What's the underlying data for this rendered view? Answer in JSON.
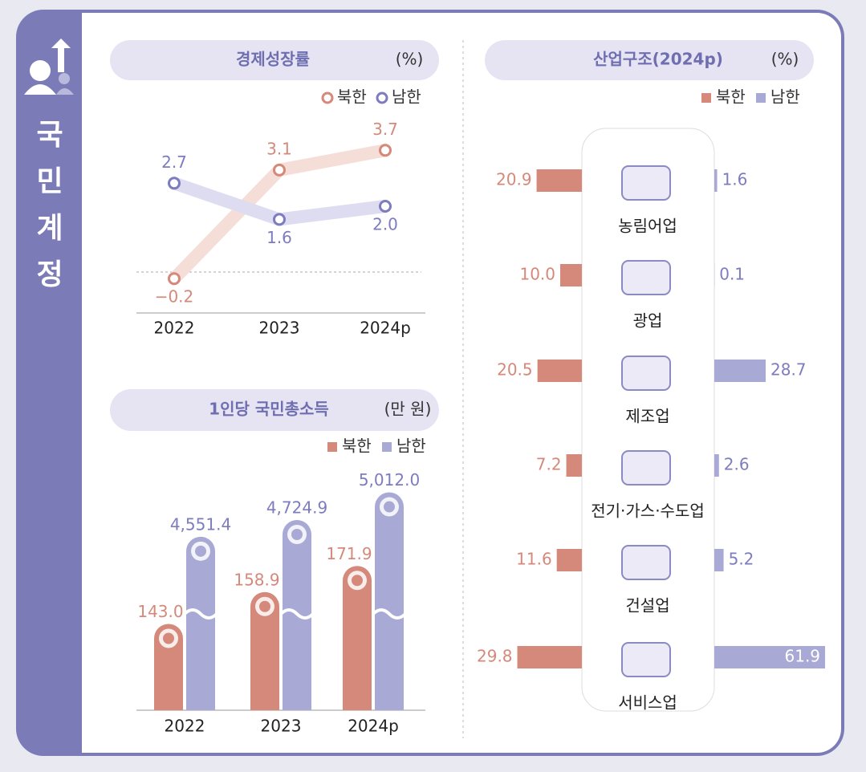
{
  "header": {
    "title": "국민계정"
  },
  "chart_data": [
    {
      "type": "line",
      "title": "경제성장률",
      "unit": "(%)",
      "categories": [
        "2022",
        "2023",
        "2024p"
      ],
      "series": [
        {
          "name": "북한",
          "color": "#d4897a",
          "values": [
            -0.2,
            3.1,
            3.7
          ],
          "value_labels": [
            "−0.2",
            "3.1",
            "3.7"
          ]
        },
        {
          "name": "남한",
          "color": "#7c7cbf",
          "values": [
            2.7,
            1.6,
            2.0
          ],
          "value_labels": [
            "2.7",
            "1.6",
            "2.0"
          ]
        }
      ]
    },
    {
      "type": "bar",
      "orientation": "vertical",
      "title": "1인당 국민총소득",
      "unit": "(만 원)",
      "categories": [
        "2022",
        "2023",
        "2024p"
      ],
      "series": [
        {
          "name": "북한",
          "color": "#d4897a",
          "values": [
            143.0,
            158.9,
            171.9
          ],
          "value_labels": [
            "143.0",
            "158.9",
            "171.9"
          ]
        },
        {
          "name": "남한",
          "color": "#a9a9d6",
          "values": [
            4551.4,
            4724.9,
            5012.0
          ],
          "value_labels": [
            "4,551.4",
            "4,724.9",
            "5,012.0"
          ]
        }
      ]
    },
    {
      "type": "bar",
      "orientation": "horizontal",
      "title": "산업구조(2024p)",
      "unit": "(%)",
      "categories": [
        "농림어업",
        "광업",
        "제조업",
        "전기·가스·수도업",
        "건설업",
        "서비스업"
      ],
      "series": [
        {
          "name": "북한",
          "color": "#d4897a",
          "values": [
            20.9,
            10.0,
            20.5,
            7.2,
            11.6,
            29.8
          ],
          "value_labels": [
            "20.9",
            "10.0",
            "20.5",
            "7.2",
            "11.6",
            "29.8"
          ]
        },
        {
          "name": "남한",
          "color": "#a9a9d6",
          "values": [
            1.6,
            0.1,
            28.7,
            2.6,
            5.2,
            61.9
          ],
          "value_labels": [
            "1.6",
            "0.1",
            "28.7",
            "2.6",
            "5.2",
            "61.9"
          ]
        }
      ]
    }
  ]
}
